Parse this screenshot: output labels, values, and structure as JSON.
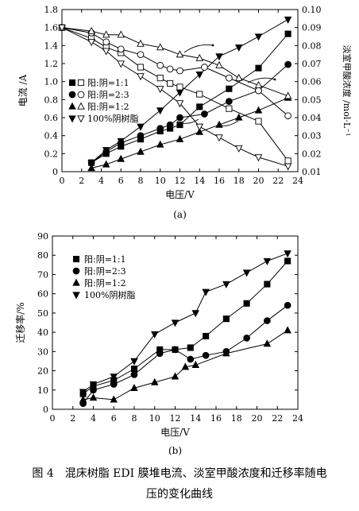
{
  "chart_data": [
    {
      "panel_label": "(a)",
      "type": "line",
      "xlabel": "电压/V",
      "ylabel_left": "电流 /A",
      "ylabel_right": "淡室甲酸浓度 /mol·L⁻¹",
      "xlim": [
        0,
        24
      ],
      "ylim_left": [
        0,
        1.8
      ],
      "ylim_right": [
        0.01,
        0.1
      ],
      "x_ticks": [
        0,
        2,
        4,
        6,
        8,
        10,
        12,
        14,
        16,
        18,
        20,
        22,
        24
      ],
      "y_left_ticks": [
        0,
        0.2,
        0.4,
        0.6,
        0.8,
        1.0,
        1.2,
        1.4,
        1.6,
        1.8
      ],
      "y_right_ticks": [
        0.01,
        0.02,
        0.03,
        0.04,
        0.05,
        0.06,
        0.07,
        0.08,
        0.09,
        0.1
      ],
      "legend": [
        "阳:阴=1:1",
        "阳:阴=2:3",
        "阳:阴=1:2",
        "100%阴树脂"
      ],
      "legend_position": "middle-left",
      "current_series": [
        {
          "name": "阳:阴=1:1",
          "marker": "square",
          "filled": true,
          "x": [
            3,
            4.5,
            6,
            8,
            10,
            11,
            12,
            14,
            17,
            20,
            23
          ],
          "y": [
            0.1,
            0.2,
            0.28,
            0.36,
            0.45,
            0.48,
            0.52,
            0.72,
            0.92,
            1.15,
            1.53
          ]
        },
        {
          "name": "阳:阴=2:3",
          "marker": "circle",
          "filled": true,
          "x": [
            3,
            4.5,
            6,
            8,
            10,
            11,
            12,
            14.5,
            17,
            20,
            23
          ],
          "y": [
            0.1,
            0.22,
            0.32,
            0.4,
            0.48,
            0.52,
            0.6,
            0.64,
            0.78,
            0.9,
            1.19
          ]
        },
        {
          "name": "阳:阴=1:2",
          "marker": "triangle",
          "filled": true,
          "x": [
            3,
            4.5,
            6,
            8,
            10,
            12,
            14,
            16,
            18,
            20,
            23
          ],
          "y": [
            0.04,
            0.08,
            0.14,
            0.22,
            0.3,
            0.36,
            0.44,
            0.52,
            0.6,
            0.68,
            0.82
          ]
        },
        {
          "name": "100%阴树脂",
          "marker": "triangle-down",
          "filled": true,
          "x": [
            3,
            4.5,
            6,
            8,
            10,
            12,
            14,
            16,
            18,
            20,
            23
          ],
          "y": [
            0.1,
            0.24,
            0.34,
            0.5,
            0.68,
            0.88,
            1.08,
            1.28,
            1.38,
            1.5,
            1.69
          ]
        }
      ],
      "concentration_series": [
        {
          "name": "阳:阴=1:1",
          "marker": "square",
          "filled": false,
          "x": [
            0,
            3,
            4.5,
            6,
            8,
            10,
            11,
            12,
            14,
            17,
            20,
            23
          ],
          "y": [
            0.09,
            0.084,
            0.079,
            0.076,
            0.068,
            0.062,
            0.059,
            0.057,
            0.053,
            0.045,
            0.038,
            0.016
          ]
        },
        {
          "name": "阳:阴=2:3",
          "marker": "circle",
          "filled": false,
          "x": [
            0,
            3,
            4.5,
            6,
            8,
            10,
            11,
            12,
            14.5,
            17,
            20,
            23
          ],
          "y": [
            0.09,
            0.087,
            0.082,
            0.078,
            0.075,
            0.069,
            0.067,
            0.066,
            0.068,
            0.062,
            0.055,
            0.041
          ]
        },
        {
          "name": "阳:阴=1:2",
          "marker": "triangle",
          "filled": false,
          "x": [
            0,
            3,
            4.5,
            6,
            8,
            10,
            12,
            14,
            16,
            18,
            20,
            23
          ],
          "y": [
            0.09,
            0.088,
            0.086,
            0.086,
            0.081,
            0.079,
            0.075,
            0.073,
            0.069,
            0.062,
            0.058,
            0.052
          ]
        },
        {
          "name": "100%阴树脂",
          "marker": "triangle-down",
          "filled": false,
          "x": [
            0,
            3,
            4.5,
            6,
            8,
            10,
            12,
            14,
            16,
            18,
            20,
            23
          ],
          "y": [
            0.09,
            0.082,
            0.077,
            0.07,
            0.063,
            0.056,
            0.048,
            0.035,
            0.029,
            0.023,
            0.018,
            0.013
          ]
        }
      ]
    },
    {
      "panel_label": "(b)",
      "type": "line",
      "xlabel": "电压/V",
      "ylabel": "迁移率/%",
      "xlim": [
        0,
        24
      ],
      "ylim": [
        0,
        90
      ],
      "x_ticks": [
        0,
        2,
        4,
        6,
        8,
        10,
        12,
        14,
        16,
        18,
        20,
        22,
        24
      ],
      "y_ticks": [
        0,
        10,
        20,
        30,
        40,
        50,
        60,
        70,
        80,
        90
      ],
      "legend": [
        "阳:阴=1:1",
        "阳:阴=2:3",
        "阳:阴=1:2",
        "100%阴树脂"
      ],
      "legend_position": "top-left",
      "series": [
        {
          "name": "阳:阴=1:1",
          "marker": "square",
          "filled": true,
          "x": [
            3,
            4,
            6,
            8,
            10.5,
            12,
            13.5,
            15,
            17,
            19,
            21,
            23
          ],
          "y": [
            8,
            12,
            15,
            21,
            31,
            31,
            32,
            38,
            47,
            55,
            65,
            77
          ]
        },
        {
          "name": "阳:阴=2:3",
          "marker": "circle",
          "filled": true,
          "x": [
            3,
            4,
            6,
            8,
            10.5,
            12,
            13.5,
            15,
            17,
            19,
            21,
            23
          ],
          "y": [
            3,
            10,
            13,
            18,
            29,
            31,
            26,
            28,
            30,
            37,
            46,
            54
          ]
        },
        {
          "name": "阳:阴=1:2",
          "marker": "triangle",
          "filled": true,
          "x": [
            3,
            4,
            6,
            8,
            10,
            12,
            13,
            14,
            17,
            21,
            23
          ],
          "y": [
            5,
            6,
            5,
            11,
            14,
            17,
            22,
            23,
            29,
            34,
            41
          ]
        },
        {
          "name": "100%阴树脂",
          "marker": "triangle-down",
          "filled": true,
          "x": [
            3,
            4,
            6,
            8,
            10,
            12,
            14,
            15,
            17,
            19,
            21,
            23
          ],
          "y": [
            9,
            13,
            17,
            25,
            39,
            45,
            50,
            61,
            65,
            71,
            77,
            81
          ]
        }
      ]
    }
  ],
  "caption": {
    "line1": "图 4　混床树脂 EDI 膜堆电流、淡室甲酸浓度和迁移率随电",
    "line2": "压的变化曲线"
  }
}
